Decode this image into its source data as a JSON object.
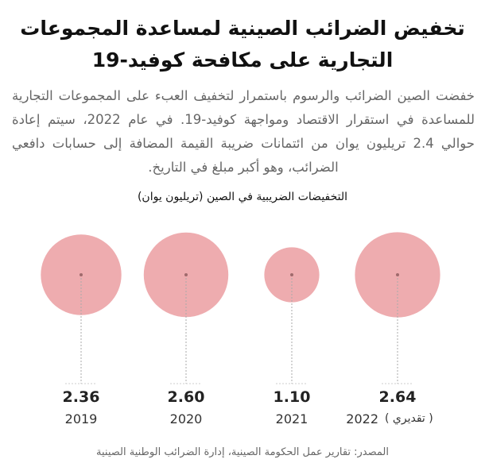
{
  "title_line1": "تخفيض الضرائب الصينية لمساعدة المجموعات",
  "title_line2": "التجارية على مكافحة كوفيد-19",
  "intro": "خفضت الصين الضرائب والرسوم باستمرار لتخفيف العبء على المجموعات التجارية للمساعدة في استقرار الاقتصاد ومواجهة كوفيد-19. في عام 2022، سيتم إعادة حوالي 2.4 تريليون يوان من ائتمانات ضريبة القيمة المضافة إلى حسابات دافعي الضرائب، وهو أكبر مبلغ في التاريخ.",
  "estimate_note": "( تقديري )",
  "source": "المصدر: تقارير عمل الحكومة الصينية، إدارة الضرائب الوطنية الصينية",
  "chart_data": {
    "type": "bubble",
    "title": "التخفيضات الضريبية في الصين (تريليون يوان)",
    "categories": [
      "2019",
      "2020",
      "2021",
      "2022"
    ],
    "values": [
      2.36,
      2.6,
      1.1,
      2.64
    ],
    "value_labels": [
      "2.36",
      "2.60",
      "1.10",
      "2.64"
    ],
    "color": "#eeacaf"
  }
}
